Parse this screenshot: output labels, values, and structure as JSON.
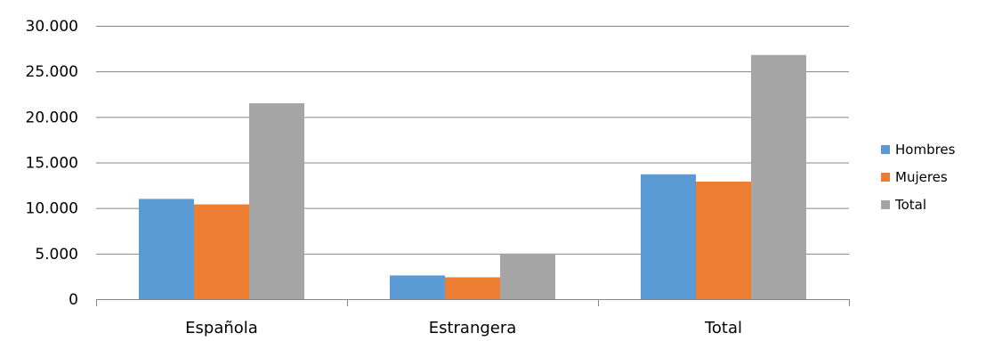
{
  "chart_data": {
    "type": "bar",
    "title": "",
    "xlabel": "",
    "ylabel": "",
    "categories": [
      "Española",
      "Estrangera",
      "Total"
    ],
    "series": [
      {
        "name": "Hombres",
        "values": [
          11000,
          2600,
          13700
        ],
        "color": "#5B9BD5"
      },
      {
        "name": "Mujeres",
        "values": [
          10400,
          2400,
          12900
        ],
        "color": "#ED7D31"
      },
      {
        "name": "Total",
        "values": [
          21500,
          5000,
          26800
        ],
        "color": "#A5A5A5"
      }
    ],
    "ylim": [
      0,
      30000
    ],
    "yticks": [
      0,
      5000,
      10000,
      15000,
      20000,
      25000,
      30000
    ],
    "ytick_labels": [
      "0",
      "5.000",
      "10.000",
      "15.000",
      "20.000",
      "25.000",
      "30.000"
    ],
    "grid": true,
    "legend_position": "right"
  }
}
